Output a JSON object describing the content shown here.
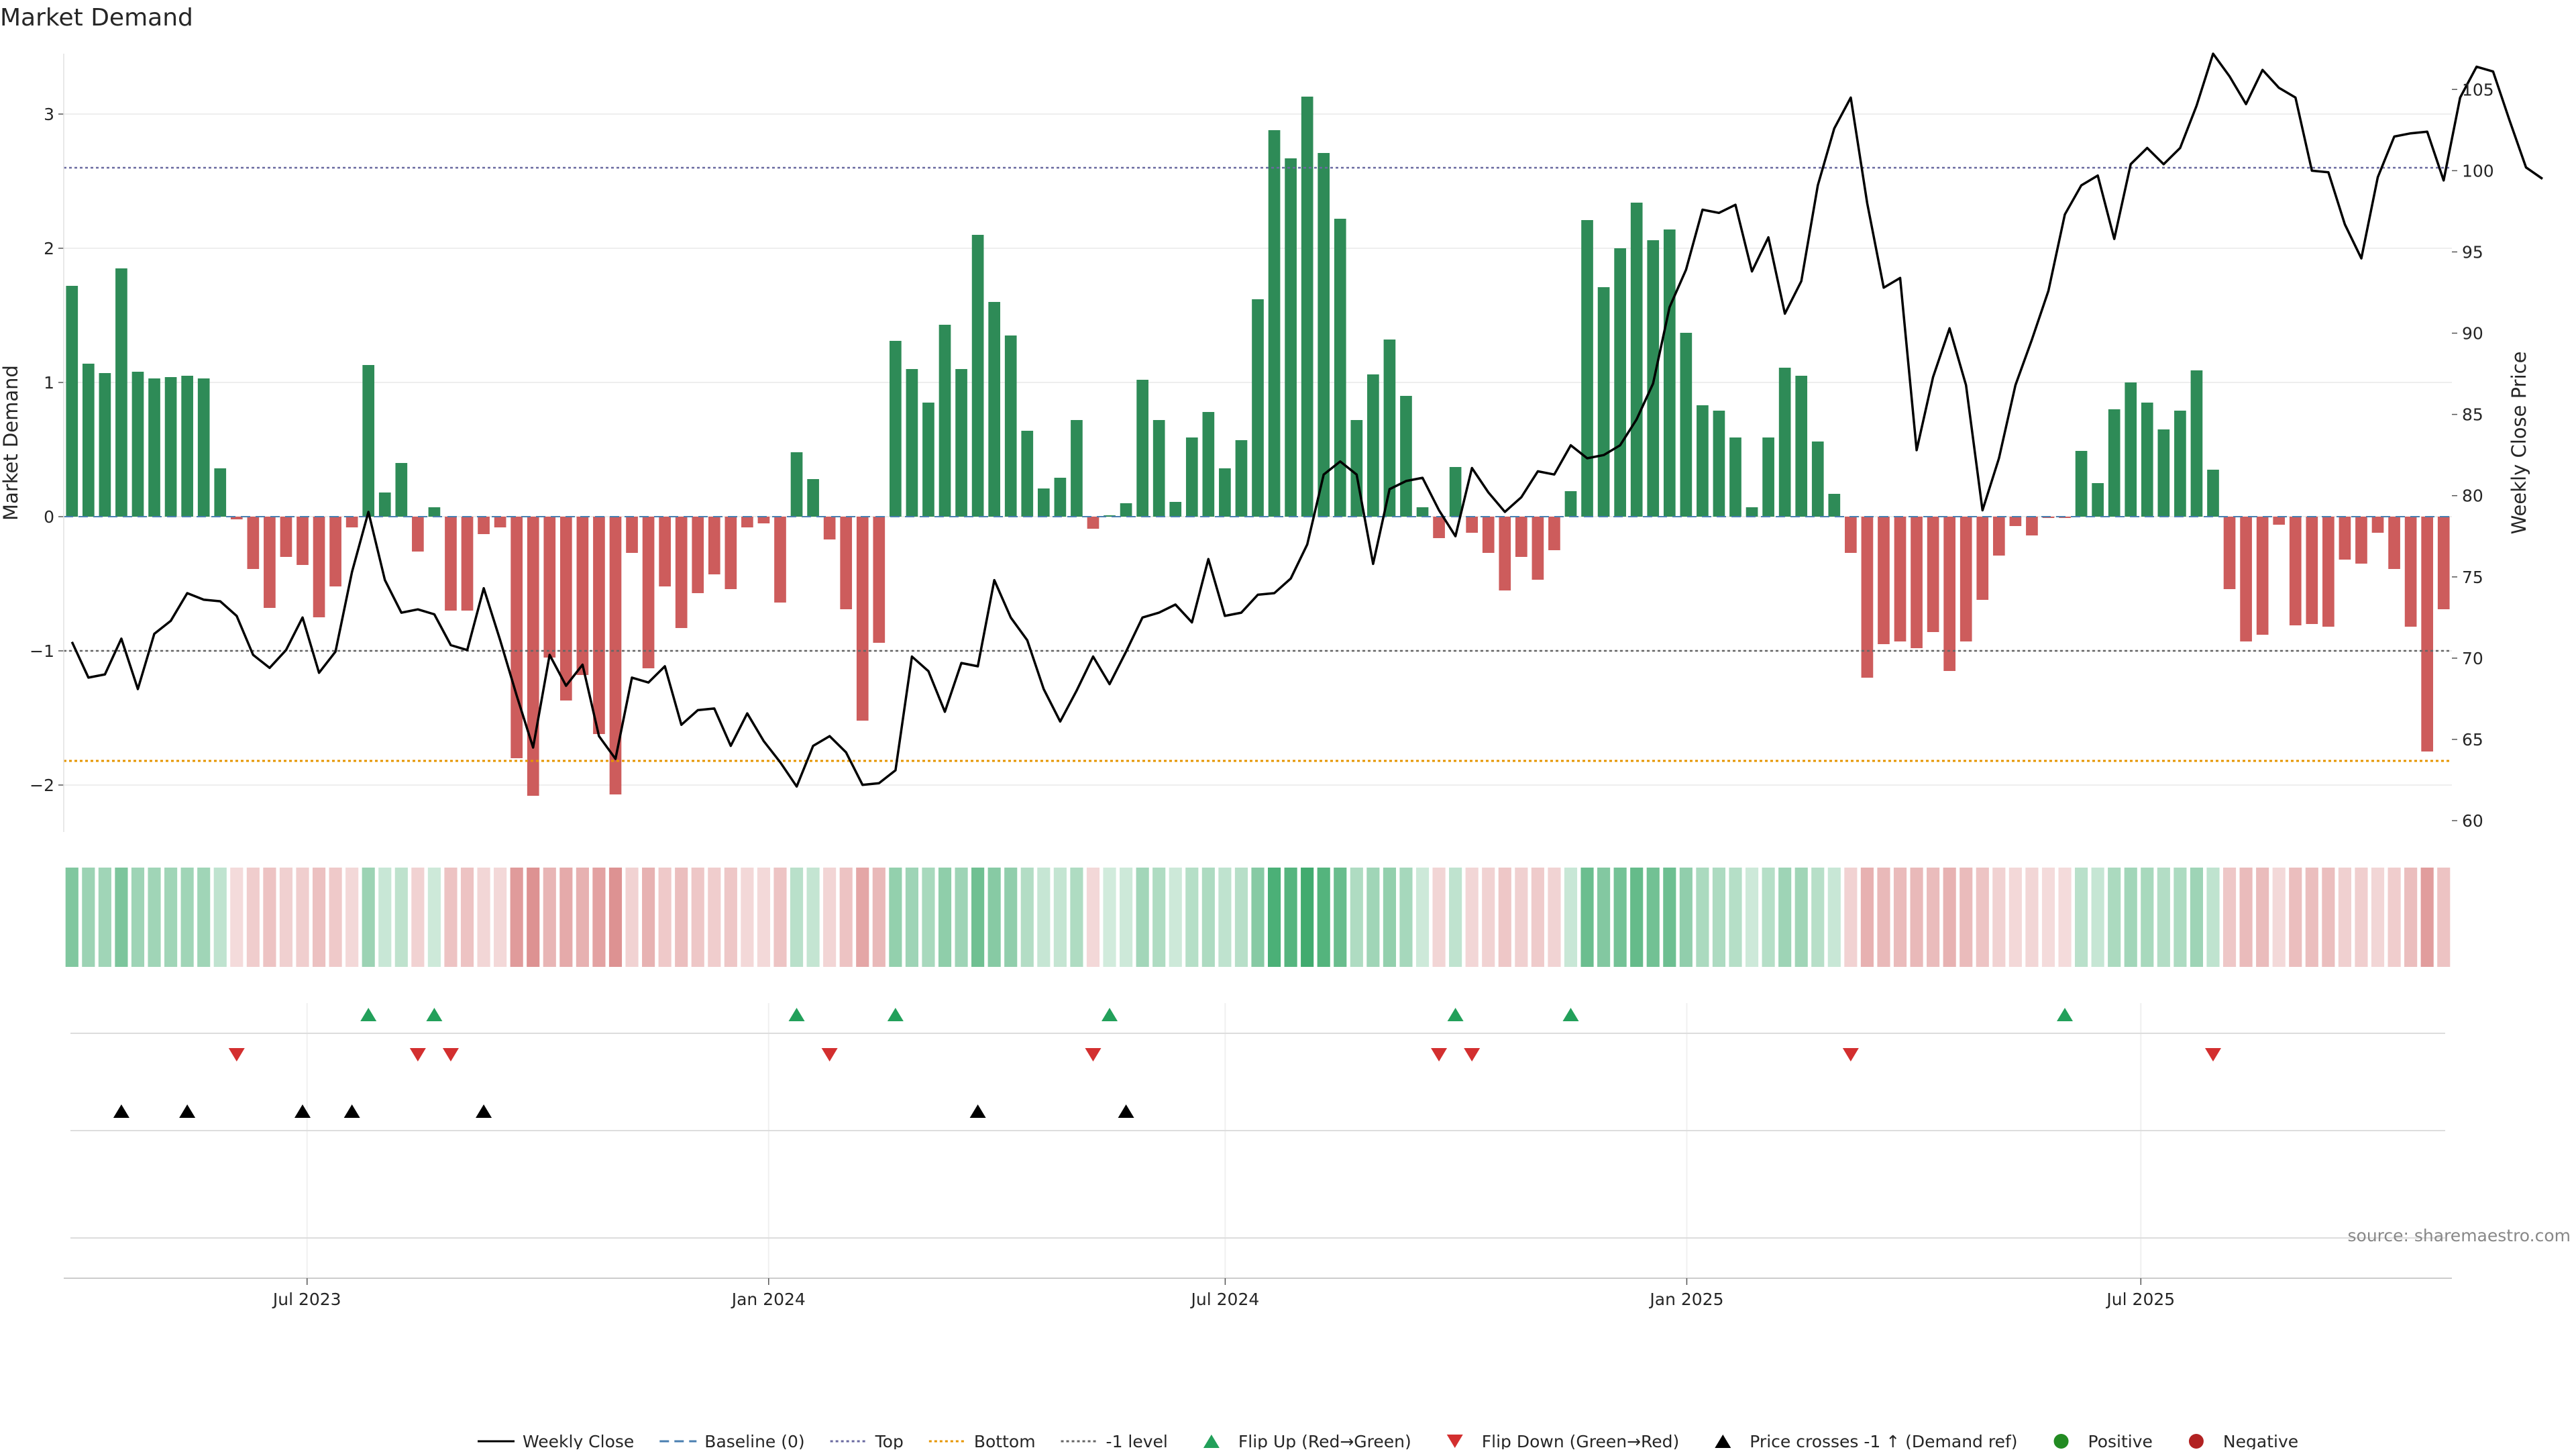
{
  "chart_data": {
    "type": "bar",
    "title": "Market Demand",
    "ylabel": "Market Demand",
    "y2label": "Weekly Close Price",
    "ylim": [
      -2.35,
      3.45
    ],
    "y2lim": [
      59.3,
      107.2
    ],
    "yticks": [
      -2,
      -1,
      0,
      1,
      2,
      3
    ],
    "y2ticks": [
      60,
      65,
      70,
      75,
      80,
      85,
      90,
      95,
      100,
      105
    ],
    "x_start": "2023-03-26",
    "x_end": "2025-11-02",
    "x_tick_labels": [
      "Jul 2023",
      "Jan 2024",
      "Jul 2024",
      "Jan 2025",
      "Jul 2025"
    ],
    "x_tick_dates": [
      "2023-07-01",
      "2024-01-01",
      "2024-07-01",
      "2025-01-01",
      "2025-07-01"
    ],
    "weeks_start": "2023-03-26",
    "week_days": 7,
    "demand": [
      1.72,
      1.14,
      1.07,
      1.85,
      1.08,
      1.03,
      1.04,
      1.05,
      1.03,
      0.36,
      -0.02,
      -0.39,
      -0.68,
      -0.3,
      -0.36,
      -0.75,
      -0.52,
      -0.08,
      1.13,
      0.18,
      0.4,
      -0.26,
      0.07,
      -0.7,
      -0.7,
      -0.13,
      -0.08,
      -1.8,
      -2.08,
      -1.05,
      -1.37,
      -1.18,
      -1.62,
      -2.07,
      -0.27,
      -1.13,
      -0.52,
      -0.83,
      -0.57,
      -0.43,
      -0.54,
      -0.08,
      -0.05,
      -0.64,
      0.48,
      0.28,
      -0.17,
      -0.69,
      -1.52,
      -0.94,
      1.31,
      1.1,
      0.85,
      1.43,
      1.1,
      2.1,
      1.6,
      1.35,
      0.64,
      0.21,
      0.29,
      0.72,
      -0.09,
      0.01,
      0.1,
      1.02,
      0.72,
      0.11,
      0.59,
      0.78,
      0.36,
      0.57,
      1.62,
      2.88,
      2.67,
      3.13,
      2.71,
      2.22,
      0.72,
      1.06,
      1.32,
      0.9,
      0.07,
      -0.16,
      0.37,
      -0.12,
      -0.27,
      -0.55,
      -0.3,
      -0.47,
      -0.25,
      0.19,
      2.21,
      1.71,
      2.0,
      2.34,
      2.06,
      2.14,
      1.37,
      0.83,
      0.79,
      0.59,
      0.07,
      0.59,
      1.11,
      1.05,
      0.56,
      0.17,
      -0.27,
      -1.2,
      -0.95,
      -0.93,
      -0.98,
      -0.86,
      -1.15,
      -0.93,
      -0.62,
      -0.29,
      -0.07,
      -0.14,
      -0.01,
      -0.01,
      0.49,
      0.25,
      0.8,
      1.0,
      0.85,
      0.65,
      0.79,
      1.09,
      0.35,
      -0.54,
      -0.93,
      -0.88,
      -0.06,
      -0.81,
      -0.8,
      -0.82,
      -0.32,
      -0.35,
      -0.12,
      -0.39,
      -0.82,
      -1.75,
      -0.69
    ],
    "weekly_close": [
      71,
      68.8,
      69,
      71.2,
      68.1,
      71.5,
      72.3,
      74,
      73.6,
      73.5,
      72.6,
      70.2,
      69.4,
      70.5,
      72.5,
      69.1,
      70.4,
      75.3,
      79,
      74.8,
      72.8,
      73,
      72.7,
      70.8,
      70.5,
      74.3,
      71.1,
      67.7,
      64.5,
      70.2,
      68.3,
      69.6,
      65.2,
      63.8,
      68.8,
      68.5,
      69.5,
      65.9,
      66.8,
      66.9,
      64.6,
      66.6,
      64.9,
      63.6,
      62.1,
      64.6,
      65.2,
      64.2,
      62.2,
      62.3,
      63.1,
      70.1,
      69.2,
      66.7,
      69.7,
      69.5,
      74.8,
      72.5,
      71.1,
      68.1,
      66.1,
      68,
      70.1,
      68.4,
      70.4,
      72.5,
      72.8,
      73.3,
      72.2,
      76.1,
      72.6,
      72.8,
      73.9,
      74,
      74.9,
      77,
      81.3,
      82.1,
      81.3,
      75.8,
      80.4,
      80.9,
      81.1,
      79.1,
      77.5,
      81.7,
      80.2,
      79,
      79.9,
      81.5,
      81.3,
      83.1,
      82.3,
      82.5,
      83.1,
      84.7,
      86.9,
      91.6,
      93.9,
      97.6,
      97.4,
      97.9,
      93.8,
      95.9,
      91.2,
      93.2,
      99.1,
      102.6,
      104.5,
      98,
      92.8,
      93.4,
      82.8,
      87.3,
      90.3,
      86.8,
      79.1,
      82.3,
      86.8,
      89.6,
      92.6,
      97.3,
      99.1,
      99.7,
      95.8,
      100.4,
      101.4,
      100.4,
      101.4,
      104,
      107.2,
      105.8,
      104.1,
      106.2,
      105.1,
      104.5,
      100,
      99.9,
      96.7,
      94.6,
      99.6,
      102.1,
      102.3,
      102.4,
      99.4,
      104.5,
      106.4,
      106.1,
      103.1,
      100.2,
      99.5
    ]
  },
  "reference_lines": {
    "top": 2.6,
    "minus_one": -1,
    "bottom": -1.82
  },
  "markers": {
    "flip_up_weeks": [
      18,
      22,
      44,
      50,
      63,
      84,
      91,
      121
    ],
    "flip_down_weeks": [
      10,
      21,
      23,
      46,
      62,
      83,
      85,
      108,
      130
    ],
    "price_cross_weeks": [
      3,
      7,
      14,
      17,
      25,
      55,
      64
    ]
  },
  "legend": [
    {
      "label": "Weekly Close",
      "style": "solid-line"
    },
    {
      "label": "Baseline (0)",
      "style": "dash-line"
    },
    {
      "label": "Top",
      "style": "dot-line"
    },
    {
      "label": "Bottom",
      "style": "orange-dot-line"
    },
    {
      "label": "-1 level",
      "style": "gray-dot-line"
    },
    {
      "label": "Flip Up (Red→Green)",
      "style": "green-triangle-up"
    },
    {
      "label": "Flip Down (Green→Red)",
      "style": "red-triangle-down"
    },
    {
      "label": "Price crosses -1 ↑ (Demand ref)",
      "style": "black-triangle-up"
    },
    {
      "label": "Positive",
      "style": "green-dot"
    },
    {
      "label": "Negative",
      "style": "red-dot"
    }
  ],
  "source_text": "source: sharemaestro.com",
  "colors": {
    "positive": "#2e8b57",
    "negative": "#cd5c5c",
    "close_line": "#000000",
    "top_line": "#6a6aa0",
    "minus_one_line": "#666666",
    "bottom_line": "#e69500",
    "baseline": "#4a7fb0",
    "flip_up": "#22a05a",
    "flip_down": "#d32f2f",
    "cross_marker": "#000000"
  }
}
